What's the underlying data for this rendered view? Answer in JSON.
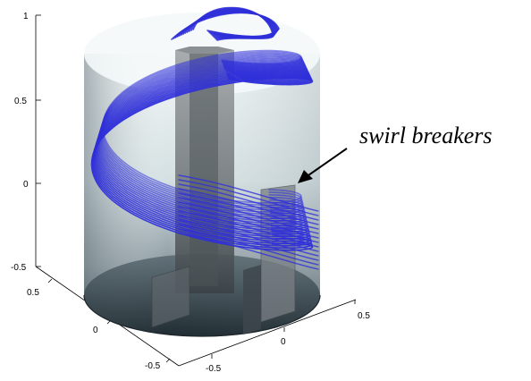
{
  "annotation": {
    "text": "swirl breakers"
  },
  "axes": {
    "z_ticks": [
      "1",
      "0.5",
      "0",
      "-0.5"
    ],
    "x_ticks": [
      "0.5",
      "0",
      "-0.5"
    ],
    "y_ticks": [
      "0.5",
      "0",
      "-0.5"
    ]
  },
  "colors": {
    "streamline": "#2f2fd9",
    "cylinder_light": "#eef4f4",
    "cylinder_dark": "#2c3c44",
    "baffle": "#6b6f72"
  }
}
